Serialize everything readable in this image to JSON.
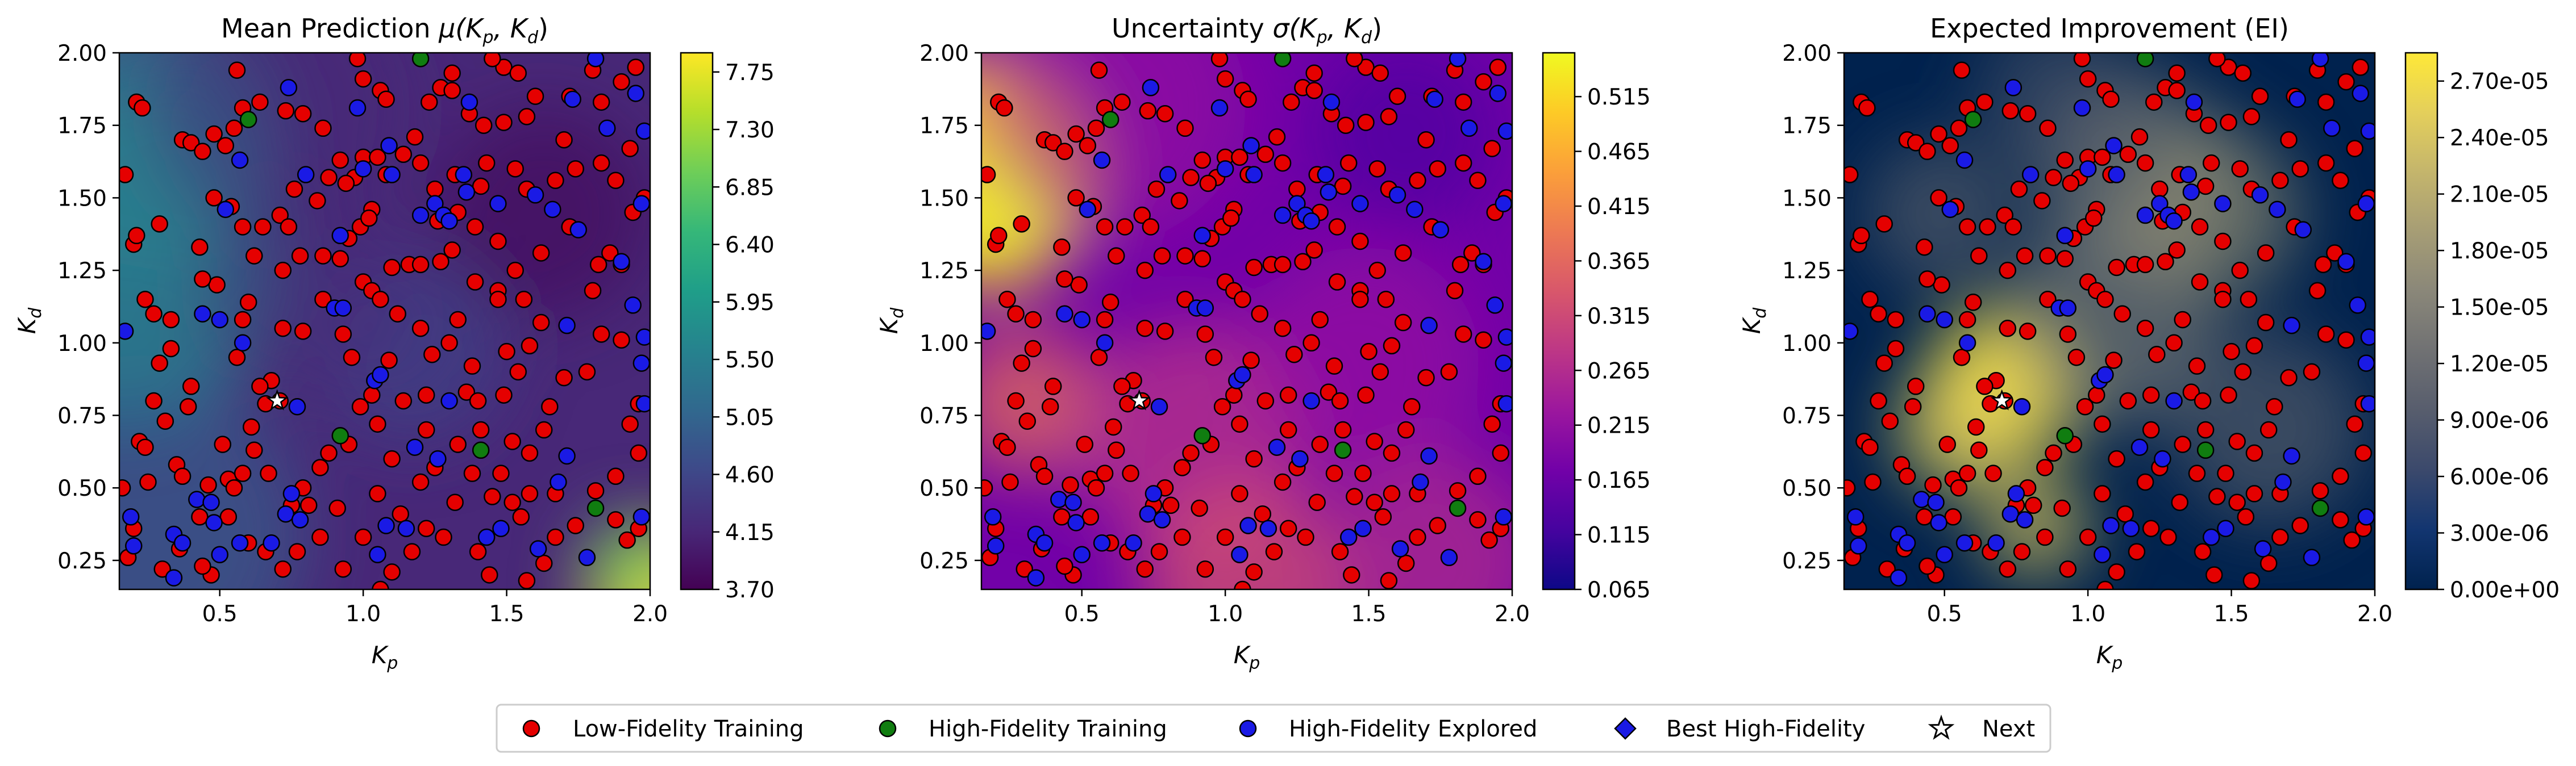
{
  "chart_data": [
    {
      "type": "heatmap",
      "title": "Mean Prediction μ(Kₚ, Kᵈ)",
      "title_main": "Mean Prediction ",
      "title_math": "μ(K",
      "xlabel": "K",
      "xlabel_sub": "p",
      "ylabel": "K",
      "ylabel_sub": "d",
      "xlim": [
        0.15,
        2.0
      ],
      "ylim": [
        0.15,
        2.0
      ],
      "xticks": [
        "0.5",
        "1.0",
        "1.5",
        "2.0"
      ],
      "yticks": [
        "0.25",
        "0.50",
        "0.75",
        "1.00",
        "1.25",
        "1.50",
        "1.75",
        "2.00"
      ],
      "colormap": "viridis",
      "colorbar_ticks": [
        "3.70",
        "4.15",
        "4.60",
        "5.05",
        "5.50",
        "5.95",
        "6.40",
        "6.85",
        "7.30",
        "7.75"
      ],
      "colorbar_range": [
        3.7,
        7.9
      ]
    },
    {
      "type": "heatmap",
      "title": "Uncertainty σ(Kₚ, Kᵈ)",
      "title_main": "Uncertainty ",
      "title_math": "σ(K",
      "xlabel": "K",
      "xlabel_sub": "p",
      "ylabel": "K",
      "ylabel_sub": "d",
      "xlim": [
        0.15,
        2.0
      ],
      "ylim": [
        0.15,
        2.0
      ],
      "xticks": [
        "0.5",
        "1.0",
        "1.5",
        "2.0"
      ],
      "yticks": [
        "0.25",
        "0.50",
        "0.75",
        "1.00",
        "1.25",
        "1.50",
        "1.75",
        "2.00"
      ],
      "colormap": "plasma",
      "colorbar_ticks": [
        "0.065",
        "0.115",
        "0.165",
        "0.215",
        "0.265",
        "0.315",
        "0.365",
        "0.415",
        "0.465",
        "0.515"
      ],
      "colorbar_range": [
        0.065,
        0.555
      ]
    },
    {
      "type": "heatmap",
      "title": "Expected Improvement (EI)",
      "title_main": "Expected Improvement (EI)",
      "title_math": "",
      "xlabel": "K",
      "xlabel_sub": "p",
      "ylabel": "K",
      "ylabel_sub": "d",
      "xlim": [
        0.15,
        2.0
      ],
      "ylim": [
        0.15,
        2.0
      ],
      "xticks": [
        "0.5",
        "1.0",
        "1.5",
        "2.0"
      ],
      "yticks": [
        "0.25",
        "0.50",
        "0.75",
        "1.00",
        "1.25",
        "1.50",
        "1.75",
        "2.00"
      ],
      "colormap": "cividis",
      "colorbar_ticks": [
        "0.00e+00",
        "3.00e-06",
        "6.00e-06",
        "9.00e-06",
        "1.20e-05",
        "1.50e-05",
        "1.80e-05",
        "2.10e-05",
        "2.40e-05",
        "2.70e-05"
      ],
      "colorbar_range": [
        0.0,
        2.85e-05
      ]
    }
  ],
  "points": {
    "low_fidelity": [
      [
        0.17,
        1.58
      ],
      [
        0.2,
        1.34
      ],
      [
        0.21,
        1.83
      ],
      [
        0.23,
        1.81
      ],
      [
        0.21,
        1.37
      ],
      [
        0.29,
        1.41
      ],
      [
        0.24,
        1.15
      ],
      [
        0.27,
        1.1
      ],
      [
        0.33,
        1.08
      ],
      [
        0.29,
        0.93
      ],
      [
        0.33,
        0.98
      ],
      [
        0.27,
        0.8
      ],
      [
        0.39,
        0.78
      ],
      [
        0.4,
        0.85
      ],
      [
        0.22,
        0.66
      ],
      [
        0.24,
        0.64
      ],
      [
        0.31,
        0.73
      ],
      [
        0.35,
        0.58
      ],
      [
        0.25,
        0.52
      ],
      [
        0.16,
        0.5
      ],
      [
        0.37,
        0.54
      ],
      [
        0.46,
        0.51
      ],
      [
        0.53,
        0.53
      ],
      [
        0.55,
        0.5
      ],
      [
        0.58,
        0.55
      ],
      [
        0.43,
        0.4
      ],
      [
        0.36,
        0.29
      ],
      [
        0.47,
        0.2
      ],
      [
        0.44,
        0.23
      ],
      [
        0.37,
        1.7
      ],
      [
        0.4,
        1.69
      ],
      [
        0.44,
        1.66
      ],
      [
        0.48,
        1.72
      ],
      [
        0.52,
        1.68
      ],
      [
        0.55,
        1.74
      ],
      [
        0.58,
        1.81
      ],
      [
        0.56,
        1.94
      ],
      [
        0.64,
        1.83
      ],
      [
        0.73,
        1.8
      ],
      [
        0.79,
        1.79
      ],
      [
        0.86,
        1.74
      ],
      [
        0.48,
        1.5
      ],
      [
        0.54,
        1.47
      ],
      [
        0.58,
        1.4
      ],
      [
        0.65,
        1.4
      ],
      [
        0.71,
        1.44
      ],
      [
        0.76,
        1.53
      ],
      [
        0.74,
        1.4
      ],
      [
        0.62,
        1.3
      ],
      [
        0.72,
        1.25
      ],
      [
        0.78,
        1.3
      ],
      [
        0.84,
        1.49
      ],
      [
        0.88,
        1.57
      ],
      [
        0.92,
        1.63
      ],
      [
        0.97,
        1.57
      ],
      [
        1.0,
        1.64
      ],
      [
        1.05,
        1.64
      ],
      [
        1.08,
        1.58
      ],
      [
        1.03,
        1.46
      ],
      [
        0.99,
        1.4
      ],
      [
        0.95,
        1.36
      ],
      [
        0.94,
        1.55
      ],
      [
        0.86,
        1.3
      ],
      [
        0.92,
        1.29
      ],
      [
        1.0,
        1.21
      ],
      [
        1.03,
        1.18
      ],
      [
        1.06,
        1.15
      ],
      [
        1.12,
        1.1
      ],
      [
        1.1,
        1.26
      ],
      [
        1.16,
        1.27
      ],
      [
        1.2,
        1.27
      ],
      [
        1.27,
        1.28
      ],
      [
        1.31,
        1.32
      ],
      [
        1.26,
        1.42
      ],
      [
        1.33,
        1.45
      ],
      [
        1.39,
        1.4
      ],
      [
        1.41,
        1.54
      ],
      [
        1.43,
        1.62
      ],
      [
        1.37,
        1.79
      ],
      [
        1.42,
        1.75
      ],
      [
        1.49,
        1.76
      ],
      [
        1.57,
        1.78
      ],
      [
        1.6,
        1.85
      ],
      [
        1.49,
        1.95
      ],
      [
        1.45,
        1.98
      ],
      [
        1.54,
        1.93
      ],
      [
        1.31,
        1.93
      ],
      [
        1.27,
        1.88
      ],
      [
        1.23,
        1.83
      ],
      [
        1.31,
        1.87
      ],
      [
        1.06,
        1.87
      ],
      [
        1.0,
        1.91
      ],
      [
        0.98,
        1.98
      ],
      [
        1.08,
        1.84
      ],
      [
        1.14,
        1.65
      ],
      [
        1.18,
        1.71
      ],
      [
        1.2,
        1.62
      ],
      [
        1.32,
        1.58
      ],
      [
        1.39,
        1.21
      ],
      [
        1.47,
        1.18
      ],
      [
        1.53,
        1.25
      ],
      [
        1.56,
        1.15
      ],
      [
        1.62,
        1.31
      ],
      [
        1.62,
        1.07
      ],
      [
        1.58,
        0.99
      ],
      [
        1.5,
        0.97
      ],
      [
        1.54,
        0.9
      ],
      [
        1.49,
        0.82
      ],
      [
        1.52,
        0.66
      ],
      [
        1.48,
        0.55
      ],
      [
        1.58,
        0.62
      ],
      [
        1.63,
        0.7
      ],
      [
        1.65,
        0.78
      ],
      [
        1.7,
        0.88
      ],
      [
        1.78,
        0.9
      ],
      [
        1.83,
        1.03
      ],
      [
        1.8,
        1.18
      ],
      [
        1.82,
        1.27
      ],
      [
        1.86,
        1.31
      ],
      [
        1.9,
        1.27
      ],
      [
        1.94,
        1.45
      ],
      [
        1.98,
        1.5
      ],
      [
        1.88,
        1.56
      ],
      [
        1.83,
        1.62
      ],
      [
        1.83,
        1.83
      ],
      [
        1.9,
        1.9
      ],
      [
        1.95,
        1.95
      ],
      [
        1.8,
        1.94
      ],
      [
        1.72,
        1.85
      ],
      [
        1.67,
        1.56
      ],
      [
        1.72,
        1.4
      ],
      [
        1.57,
        1.53
      ],
      [
        1.2,
        1.05
      ],
      [
        1.3,
        1.0
      ],
      [
        1.38,
        0.92
      ],
      [
        1.36,
        0.83
      ],
      [
        1.4,
        0.8
      ],
      [
        1.33,
        0.65
      ],
      [
        1.25,
        0.57
      ],
      [
        1.2,
        0.52
      ],
      [
        1.13,
        0.41
      ],
      [
        1.05,
        0.48
      ],
      [
        1.1,
        0.6
      ],
      [
        1.05,
        0.72
      ],
      [
        1.03,
        0.82
      ],
      [
        1.09,
        0.94
      ],
      [
        0.96,
        0.95
      ],
      [
        0.99,
        0.78
      ],
      [
        0.95,
        0.65
      ],
      [
        0.88,
        0.62
      ],
      [
        0.85,
        0.57
      ],
      [
        0.91,
        0.43
      ],
      [
        0.85,
        0.33
      ],
      [
        0.77,
        0.28
      ],
      [
        0.79,
        0.5
      ],
      [
        0.67,
        0.55
      ],
      [
        0.71,
        0.8
      ],
      [
        0.68,
        0.87
      ],
      [
        0.64,
        0.85
      ],
      [
        0.66,
        0.79
      ],
      [
        0.56,
        0.95
      ],
      [
        0.58,
        1.08
      ],
      [
        0.6,
        1.14
      ],
      [
        0.49,
        1.2
      ],
      [
        0.44,
        1.22
      ],
      [
        0.43,
        1.33
      ],
      [
        0.62,
        0.63
      ],
      [
        0.61,
        0.71
      ],
      [
        0.51,
        0.65
      ],
      [
        0.6,
        0.31
      ],
      [
        0.66,
        0.28
      ],
      [
        0.72,
        0.22
      ],
      [
        1.0,
        0.33
      ],
      [
        0.93,
        0.22
      ],
      [
        1.17,
        0.28
      ],
      [
        1.22,
        0.36
      ],
      [
        1.28,
        0.33
      ],
      [
        1.32,
        0.45
      ],
      [
        1.38,
        0.55
      ],
      [
        1.45,
        0.47
      ],
      [
        1.4,
        0.28
      ],
      [
        1.44,
        0.2
      ],
      [
        1.57,
        0.18
      ],
      [
        1.63,
        0.24
      ],
      [
        1.67,
        0.33
      ],
      [
        1.74,
        0.37
      ],
      [
        1.88,
        0.39
      ],
      [
        1.92,
        0.32
      ],
      [
        1.96,
        0.36
      ],
      [
        1.81,
        0.49
      ],
      [
        1.88,
        0.54
      ],
      [
        1.96,
        0.62
      ],
      [
        1.93,
        0.72
      ],
      [
        1.96,
        0.79
      ],
      [
        1.9,
        1.01
      ],
      [
        1.67,
        0.48
      ],
      [
        1.58,
        0.48
      ],
      [
        1.52,
        0.45
      ],
      [
        1.22,
        0.7
      ],
      [
        1.22,
        0.82
      ],
      [
        1.24,
        0.96
      ],
      [
        1.33,
        1.08
      ],
      [
        1.47,
        1.15
      ],
      [
        1.41,
        0.7
      ],
      [
        1.55,
        0.4
      ],
      [
        1.1,
        0.21
      ],
      [
        1.06,
        0.15
      ],
      [
        0.81,
        0.44
      ],
      [
        0.75,
        0.44
      ],
      [
        0.53,
        0.4
      ],
      [
        0.2,
        0.36
      ],
      [
        0.18,
        0.26
      ],
      [
        0.3,
        0.22
      ],
      [
        1.14,
        0.8
      ],
      [
        1.47,
        1.35
      ],
      [
        0.79,
        1.04
      ],
      [
        0.72,
        1.05
      ],
      [
        0.86,
        1.15
      ],
      [
        0.93,
        1.03
      ],
      [
        1.02,
        1.43
      ],
      [
        1.25,
        1.53
      ],
      [
        1.53,
        1.6
      ],
      [
        1.7,
        1.7
      ],
      [
        1.74,
        1.6
      ],
      [
        1.93,
        1.67
      ]
    ],
    "high_fidelity": [
      [
        1.2,
        1.98
      ],
      [
        0.6,
        1.77
      ],
      [
        0.92,
        0.68
      ],
      [
        1.41,
        0.63
      ],
      [
        1.81,
        0.43
      ]
    ],
    "explored": [
      [
        0.17,
        1.04
      ],
      [
        0.19,
        0.4
      ],
      [
        0.2,
        0.3
      ],
      [
        0.34,
        0.34
      ],
      [
        0.34,
        0.19
      ],
      [
        0.37,
        0.31
      ],
      [
        0.42,
        0.46
      ],
      [
        0.47,
        0.45
      ],
      [
        0.48,
        0.38
      ],
      [
        0.44,
        1.1
      ],
      [
        0.5,
        1.08
      ],
      [
        0.58,
        1.0
      ],
      [
        0.5,
        0.27
      ],
      [
        0.57,
        0.31
      ],
      [
        0.52,
        1.46
      ],
      [
        0.57,
        1.63
      ],
      [
        0.77,
        0.78
      ],
      [
        0.73,
        0.41
      ],
      [
        0.75,
        0.48
      ],
      [
        0.78,
        0.39
      ],
      [
        0.68,
        0.31
      ],
      [
        0.74,
        1.88
      ],
      [
        0.92,
        1.37
      ],
      [
        0.98,
        1.81
      ],
      [
        1.09,
        1.68
      ],
      [
        0.9,
        1.12
      ],
      [
        0.93,
        1.12
      ],
      [
        1.0,
        1.6
      ],
      [
        1.04,
        0.87
      ],
      [
        1.06,
        0.89
      ],
      [
        1.2,
        1.44
      ],
      [
        1.18,
        0.64
      ],
      [
        1.15,
        0.36
      ],
      [
        1.08,
        0.37
      ],
      [
        1.05,
        0.27
      ],
      [
        1.3,
        0.8
      ],
      [
        1.35,
        1.58
      ],
      [
        1.37,
        1.83
      ],
      [
        1.36,
        1.52
      ],
      [
        1.26,
        0.6
      ],
      [
        1.43,
        0.33
      ],
      [
        1.48,
        0.36
      ],
      [
        1.68,
        0.52
      ],
      [
        1.71,
        0.61
      ],
      [
        1.71,
        1.06
      ],
      [
        1.61,
        0.29
      ],
      [
        1.6,
        1.51
      ],
      [
        1.75,
        1.39
      ],
      [
        1.66,
        1.46
      ],
      [
        1.73,
        1.84
      ],
      [
        1.81,
        1.98
      ],
      [
        1.85,
        1.74
      ],
      [
        1.9,
        1.28
      ],
      [
        1.95,
        1.86
      ],
      [
        1.98,
        1.73
      ],
      [
        1.97,
        1.48
      ],
      [
        1.94,
        1.13
      ],
      [
        1.98,
        1.02
      ],
      [
        1.97,
        0.93
      ],
      [
        1.98,
        0.79
      ],
      [
        1.97,
        0.4
      ],
      [
        1.78,
        0.26
      ],
      [
        1.25,
        1.48
      ],
      [
        1.28,
        1.44
      ],
      [
        1.3,
        1.42
      ],
      [
        1.47,
        1.48
      ],
      [
        0.8,
        1.58
      ],
      [
        1.1,
        1.58
      ]
    ],
    "next": [
      0.7,
      0.8
    ]
  },
  "legend": {
    "items": [
      {
        "label": "Low-Fidelity Training",
        "color": "#e50000",
        "marker": "circle"
      },
      {
        "label": "High-Fidelity Training",
        "color": "#107d10",
        "marker": "circle"
      },
      {
        "label": "High-Fidelity Explored",
        "color": "#1a1ae5",
        "marker": "circle"
      },
      {
        "label": "Best High-Fidelity",
        "color": "#1a1ae5",
        "marker": "diamond"
      },
      {
        "label": "Next",
        "color": "#ffffff",
        "marker": "star"
      }
    ]
  },
  "colors": {
    "low_fidelity": "#e50000",
    "high_fidelity": "#107d10",
    "explored": "#1a1ae5",
    "marker_edge": "#000000"
  }
}
